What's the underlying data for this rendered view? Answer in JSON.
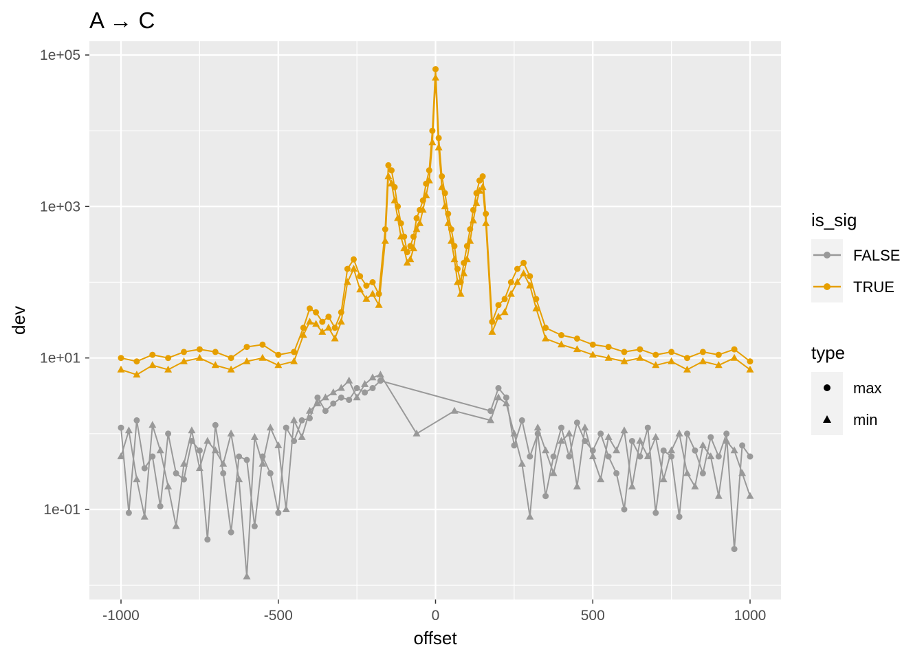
{
  "chart_data": {
    "type": "line",
    "title": "A → C",
    "xlabel": "offset",
    "ylabel": "dev",
    "x_scale": "linear",
    "y_scale": "log10",
    "xlim": [
      -1000,
      1000
    ],
    "ylim": [
      0.01,
      100000
    ],
    "x_ticks": [
      -1000,
      -500,
      0,
      500,
      1000
    ],
    "x_tick_labels": [
      "-1000",
      "-500",
      "0",
      "500",
      "1000"
    ],
    "y_ticks": [
      0.1,
      10,
      1000,
      100000
    ],
    "y_tick_labels": [
      "1e-01",
      "1e+01",
      "1e+03",
      "1e+05"
    ],
    "grid": true,
    "legend_placement": "right",
    "colors": {
      "false": "#999999",
      "true": "#E69F00",
      "panel": "#EBEBEB",
      "grid": "#FFFFFF"
    },
    "legends": [
      {
        "title": "is_sig",
        "entries": [
          {
            "label": "FALSE",
            "color": "#999999"
          },
          {
            "label": "TRUE",
            "color": "#E69F00"
          }
        ]
      },
      {
        "title": "type",
        "entries": [
          {
            "label": "max",
            "shape": "circle"
          },
          {
            "label": "min",
            "shape": "triangle"
          }
        ]
      }
    ],
    "series": [
      {
        "name": "FALSE",
        "type": "max",
        "points": [
          [
            -1000,
            1.2
          ],
          [
            -975,
            0.09
          ],
          [
            -950,
            1.5
          ],
          [
            -925,
            0.35
          ],
          [
            -900,
            0.5
          ],
          [
            -875,
            0.11
          ],
          [
            -850,
            1.0
          ],
          [
            -825,
            0.3
          ],
          [
            -800,
            0.25
          ],
          [
            -775,
            0.8
          ],
          [
            -750,
            0.6
          ],
          [
            -725,
            0.04
          ],
          [
            -700,
            1.3
          ],
          [
            -675,
            0.3
          ],
          [
            -650,
            0.05
          ],
          [
            -625,
            0.5
          ],
          [
            -600,
            0.45
          ],
          [
            -575,
            0.06
          ],
          [
            -550,
            0.5
          ],
          [
            -525,
            0.3
          ],
          [
            -500,
            0.09
          ],
          [
            -475,
            1.2
          ],
          [
            -450,
            0.8
          ],
          [
            -425,
            1.5
          ],
          [
            -400,
            1.6
          ],
          [
            -375,
            3
          ],
          [
            -350,
            2
          ],
          [
            -325,
            2.5
          ],
          [
            -300,
            3
          ],
          [
            -275,
            2.8
          ],
          [
            -250,
            4
          ],
          [
            -225,
            3.5
          ],
          [
            -200,
            4
          ],
          [
            -175,
            5
          ],
          [
            175,
            2
          ],
          [
            200,
            4
          ],
          [
            225,
            3
          ],
          [
            250,
            0.7
          ],
          [
            275,
            1.5
          ],
          [
            300,
            0.5
          ],
          [
            325,
            1.0
          ],
          [
            350,
            0.15
          ],
          [
            375,
            0.5
          ],
          [
            400,
            1.2
          ],
          [
            425,
            0.5
          ],
          [
            450,
            1.4
          ],
          [
            475,
            0.8
          ],
          [
            500,
            0.6
          ],
          [
            525,
            1.0
          ],
          [
            550,
            0.5
          ],
          [
            575,
            0.3
          ],
          [
            600,
            0.1
          ],
          [
            625,
            0.8
          ],
          [
            650,
            0.5
          ],
          [
            675,
            1.2
          ],
          [
            700,
            0.09
          ],
          [
            725,
            0.6
          ],
          [
            750,
            0.5
          ],
          [
            775,
            0.08
          ],
          [
            800,
            1.0
          ],
          [
            825,
            0.6
          ],
          [
            850,
            0.3
          ],
          [
            875,
            0.9
          ],
          [
            900,
            0.5
          ],
          [
            925,
            1.0
          ],
          [
            950,
            0.03
          ],
          [
            975,
            0.7
          ],
          [
            1000,
            0.5
          ]
        ]
      },
      {
        "name": "FALSE",
        "type": "min",
        "points": [
          [
            -1000,
            0.5
          ],
          [
            -975,
            1.1
          ],
          [
            -950,
            0.25
          ],
          [
            -925,
            0.08
          ],
          [
            -900,
            1.3
          ],
          [
            -875,
            0.6
          ],
          [
            -850,
            0.2
          ],
          [
            -825,
            0.06
          ],
          [
            -800,
            0.4
          ],
          [
            -775,
            1.1
          ],
          [
            -750,
            0.35
          ],
          [
            -725,
            0.8
          ],
          [
            -700,
            0.6
          ],
          [
            -675,
            0.4
          ],
          [
            -650,
            1.0
          ],
          [
            -625,
            0.25
          ],
          [
            -600,
            0.013
          ],
          [
            -575,
            0.9
          ],
          [
            -550,
            0.4
          ],
          [
            -525,
            1.2
          ],
          [
            -500,
            0.7
          ],
          [
            -475,
            0.1
          ],
          [
            -450,
            1.5
          ],
          [
            -425,
            0.9
          ],
          [
            -400,
            2
          ],
          [
            -375,
            2.5
          ],
          [
            -350,
            3
          ],
          [
            -325,
            3.5
          ],
          [
            -300,
            4
          ],
          [
            -275,
            5
          ],
          [
            -250,
            3
          ],
          [
            -225,
            4.5
          ],
          [
            -200,
            5.5
          ],
          [
            -175,
            6
          ],
          [
            -60,
            1.0
          ],
          [
            60,
            2.0
          ],
          [
            175,
            1.5
          ],
          [
            200,
            3
          ],
          [
            225,
            2.5
          ],
          [
            250,
            1.0
          ],
          [
            275,
            0.4
          ],
          [
            300,
            0.08
          ],
          [
            325,
            1.2
          ],
          [
            350,
            0.6
          ],
          [
            375,
            0.3
          ],
          [
            400,
            0.8
          ],
          [
            425,
            1.0
          ],
          [
            450,
            0.2
          ],
          [
            475,
            1.2
          ],
          [
            500,
            0.5
          ],
          [
            525,
            0.25
          ],
          [
            550,
            0.9
          ],
          [
            575,
            0.6
          ],
          [
            600,
            1.1
          ],
          [
            625,
            0.2
          ],
          [
            650,
            0.8
          ],
          [
            675,
            0.5
          ],
          [
            700,
            0.9
          ],
          [
            725,
            0.25
          ],
          [
            750,
            0.6
          ],
          [
            775,
            1.0
          ],
          [
            800,
            0.3
          ],
          [
            825,
            0.2
          ],
          [
            850,
            0.7
          ],
          [
            875,
            0.5
          ],
          [
            900,
            0.15
          ],
          [
            925,
            0.8
          ],
          [
            950,
            0.6
          ],
          [
            975,
            0.3
          ],
          [
            1000,
            0.15
          ]
        ]
      },
      {
        "name": "TRUE",
        "type": "max",
        "points": [
          [
            -1000,
            10
          ],
          [
            -950,
            9
          ],
          [
            -900,
            11
          ],
          [
            -850,
            10
          ],
          [
            -800,
            12
          ],
          [
            -750,
            13
          ],
          [
            -700,
            12
          ],
          [
            -650,
            10
          ],
          [
            -600,
            14
          ],
          [
            -550,
            15
          ],
          [
            -500,
            11
          ],
          [
            -450,
            12
          ],
          [
            -420,
            25
          ],
          [
            -400,
            45
          ],
          [
            -380,
            40
          ],
          [
            -360,
            30
          ],
          [
            -340,
            35
          ],
          [
            -320,
            25
          ],
          [
            -300,
            40
          ],
          [
            -280,
            150
          ],
          [
            -260,
            200
          ],
          [
            -240,
            120
          ],
          [
            -220,
            90
          ],
          [
            -200,
            100
          ],
          [
            -180,
            70
          ],
          [
            -160,
            500
          ],
          [
            -150,
            3500
          ],
          [
            -140,
            3000
          ],
          [
            -130,
            1800
          ],
          [
            -120,
            1000
          ],
          [
            -110,
            600
          ],
          [
            -100,
            400
          ],
          [
            -90,
            250
          ],
          [
            -80,
            300
          ],
          [
            -70,
            400
          ],
          [
            -60,
            700
          ],
          [
            -50,
            900
          ],
          [
            -40,
            1200
          ],
          [
            -30,
            2000
          ],
          [
            -20,
            3000
          ],
          [
            -10,
            10000
          ],
          [
            0,
            65000
          ],
          [
            10,
            8000
          ],
          [
            20,
            2500
          ],
          [
            30,
            1500
          ],
          [
            40,
            800
          ],
          [
            50,
            500
          ],
          [
            60,
            300
          ],
          [
            70,
            150
          ],
          [
            80,
            100
          ],
          [
            90,
            180
          ],
          [
            100,
            300
          ],
          [
            110,
            500
          ],
          [
            120,
            900
          ],
          [
            130,
            1500
          ],
          [
            140,
            2200
          ],
          [
            150,
            2500
          ],
          [
            160,
            800
          ],
          [
            180,
            30
          ],
          [
            200,
            50
          ],
          [
            220,
            60
          ],
          [
            240,
            100
          ],
          [
            260,
            150
          ],
          [
            280,
            180
          ],
          [
            300,
            120
          ],
          [
            320,
            60
          ],
          [
            350,
            25
          ],
          [
            400,
            20
          ],
          [
            450,
            18
          ],
          [
            500,
            15
          ],
          [
            550,
            14
          ],
          [
            600,
            12
          ],
          [
            650,
            13
          ],
          [
            700,
            11
          ],
          [
            750,
            12
          ],
          [
            800,
            10
          ],
          [
            850,
            12
          ],
          [
            900,
            11
          ],
          [
            950,
            13
          ],
          [
            1000,
            9
          ]
        ]
      },
      {
        "name": "TRUE",
        "type": "min",
        "points": [
          [
            -1000,
            7
          ],
          [
            -950,
            6
          ],
          [
            -900,
            8
          ],
          [
            -850,
            7
          ],
          [
            -800,
            9
          ],
          [
            -750,
            10
          ],
          [
            -700,
            8
          ],
          [
            -650,
            7
          ],
          [
            -600,
            9
          ],
          [
            -550,
            10
          ],
          [
            -500,
            8
          ],
          [
            -450,
            9
          ],
          [
            -420,
            20
          ],
          [
            -400,
            30
          ],
          [
            -380,
            28
          ],
          [
            -360,
            22
          ],
          [
            -340,
            25
          ],
          [
            -320,
            18
          ],
          [
            -300,
            30
          ],
          [
            -280,
            100
          ],
          [
            -260,
            150
          ],
          [
            -240,
            80
          ],
          [
            -220,
            60
          ],
          [
            -200,
            70
          ],
          [
            -180,
            50
          ],
          [
            -160,
            350
          ],
          [
            -150,
            2500
          ],
          [
            -140,
            2000
          ],
          [
            -130,
            1200
          ],
          [
            -120,
            700
          ],
          [
            -110,
            400
          ],
          [
            -100,
            280
          ],
          [
            -90,
            180
          ],
          [
            -80,
            200
          ],
          [
            -70,
            280
          ],
          [
            -60,
            500
          ],
          [
            -50,
            600
          ],
          [
            -40,
            900
          ],
          [
            -30,
            1400
          ],
          [
            -20,
            2200
          ],
          [
            -10,
            7000
          ],
          [
            0,
            50000
          ],
          [
            10,
            6000
          ],
          [
            20,
            1800
          ],
          [
            30,
            1000
          ],
          [
            40,
            600
          ],
          [
            50,
            350
          ],
          [
            60,
            200
          ],
          [
            70,
            100
          ],
          [
            80,
            70
          ],
          [
            90,
            130
          ],
          [
            100,
            200
          ],
          [
            110,
            350
          ],
          [
            120,
            650
          ],
          [
            130,
            1100
          ],
          [
            140,
            1600
          ],
          [
            150,
            1800
          ],
          [
            160,
            600
          ],
          [
            180,
            22
          ],
          [
            200,
            35
          ],
          [
            220,
            40
          ],
          [
            240,
            70
          ],
          [
            260,
            100
          ],
          [
            280,
            130
          ],
          [
            300,
            90
          ],
          [
            320,
            45
          ],
          [
            350,
            18
          ],
          [
            400,
            15
          ],
          [
            450,
            13
          ],
          [
            500,
            11
          ],
          [
            550,
            10
          ],
          [
            600,
            9
          ],
          [
            650,
            10
          ],
          [
            700,
            8
          ],
          [
            750,
            9
          ],
          [
            800,
            7
          ],
          [
            850,
            9
          ],
          [
            900,
            8
          ],
          [
            950,
            10
          ],
          [
            1000,
            7
          ]
        ]
      }
    ]
  }
}
